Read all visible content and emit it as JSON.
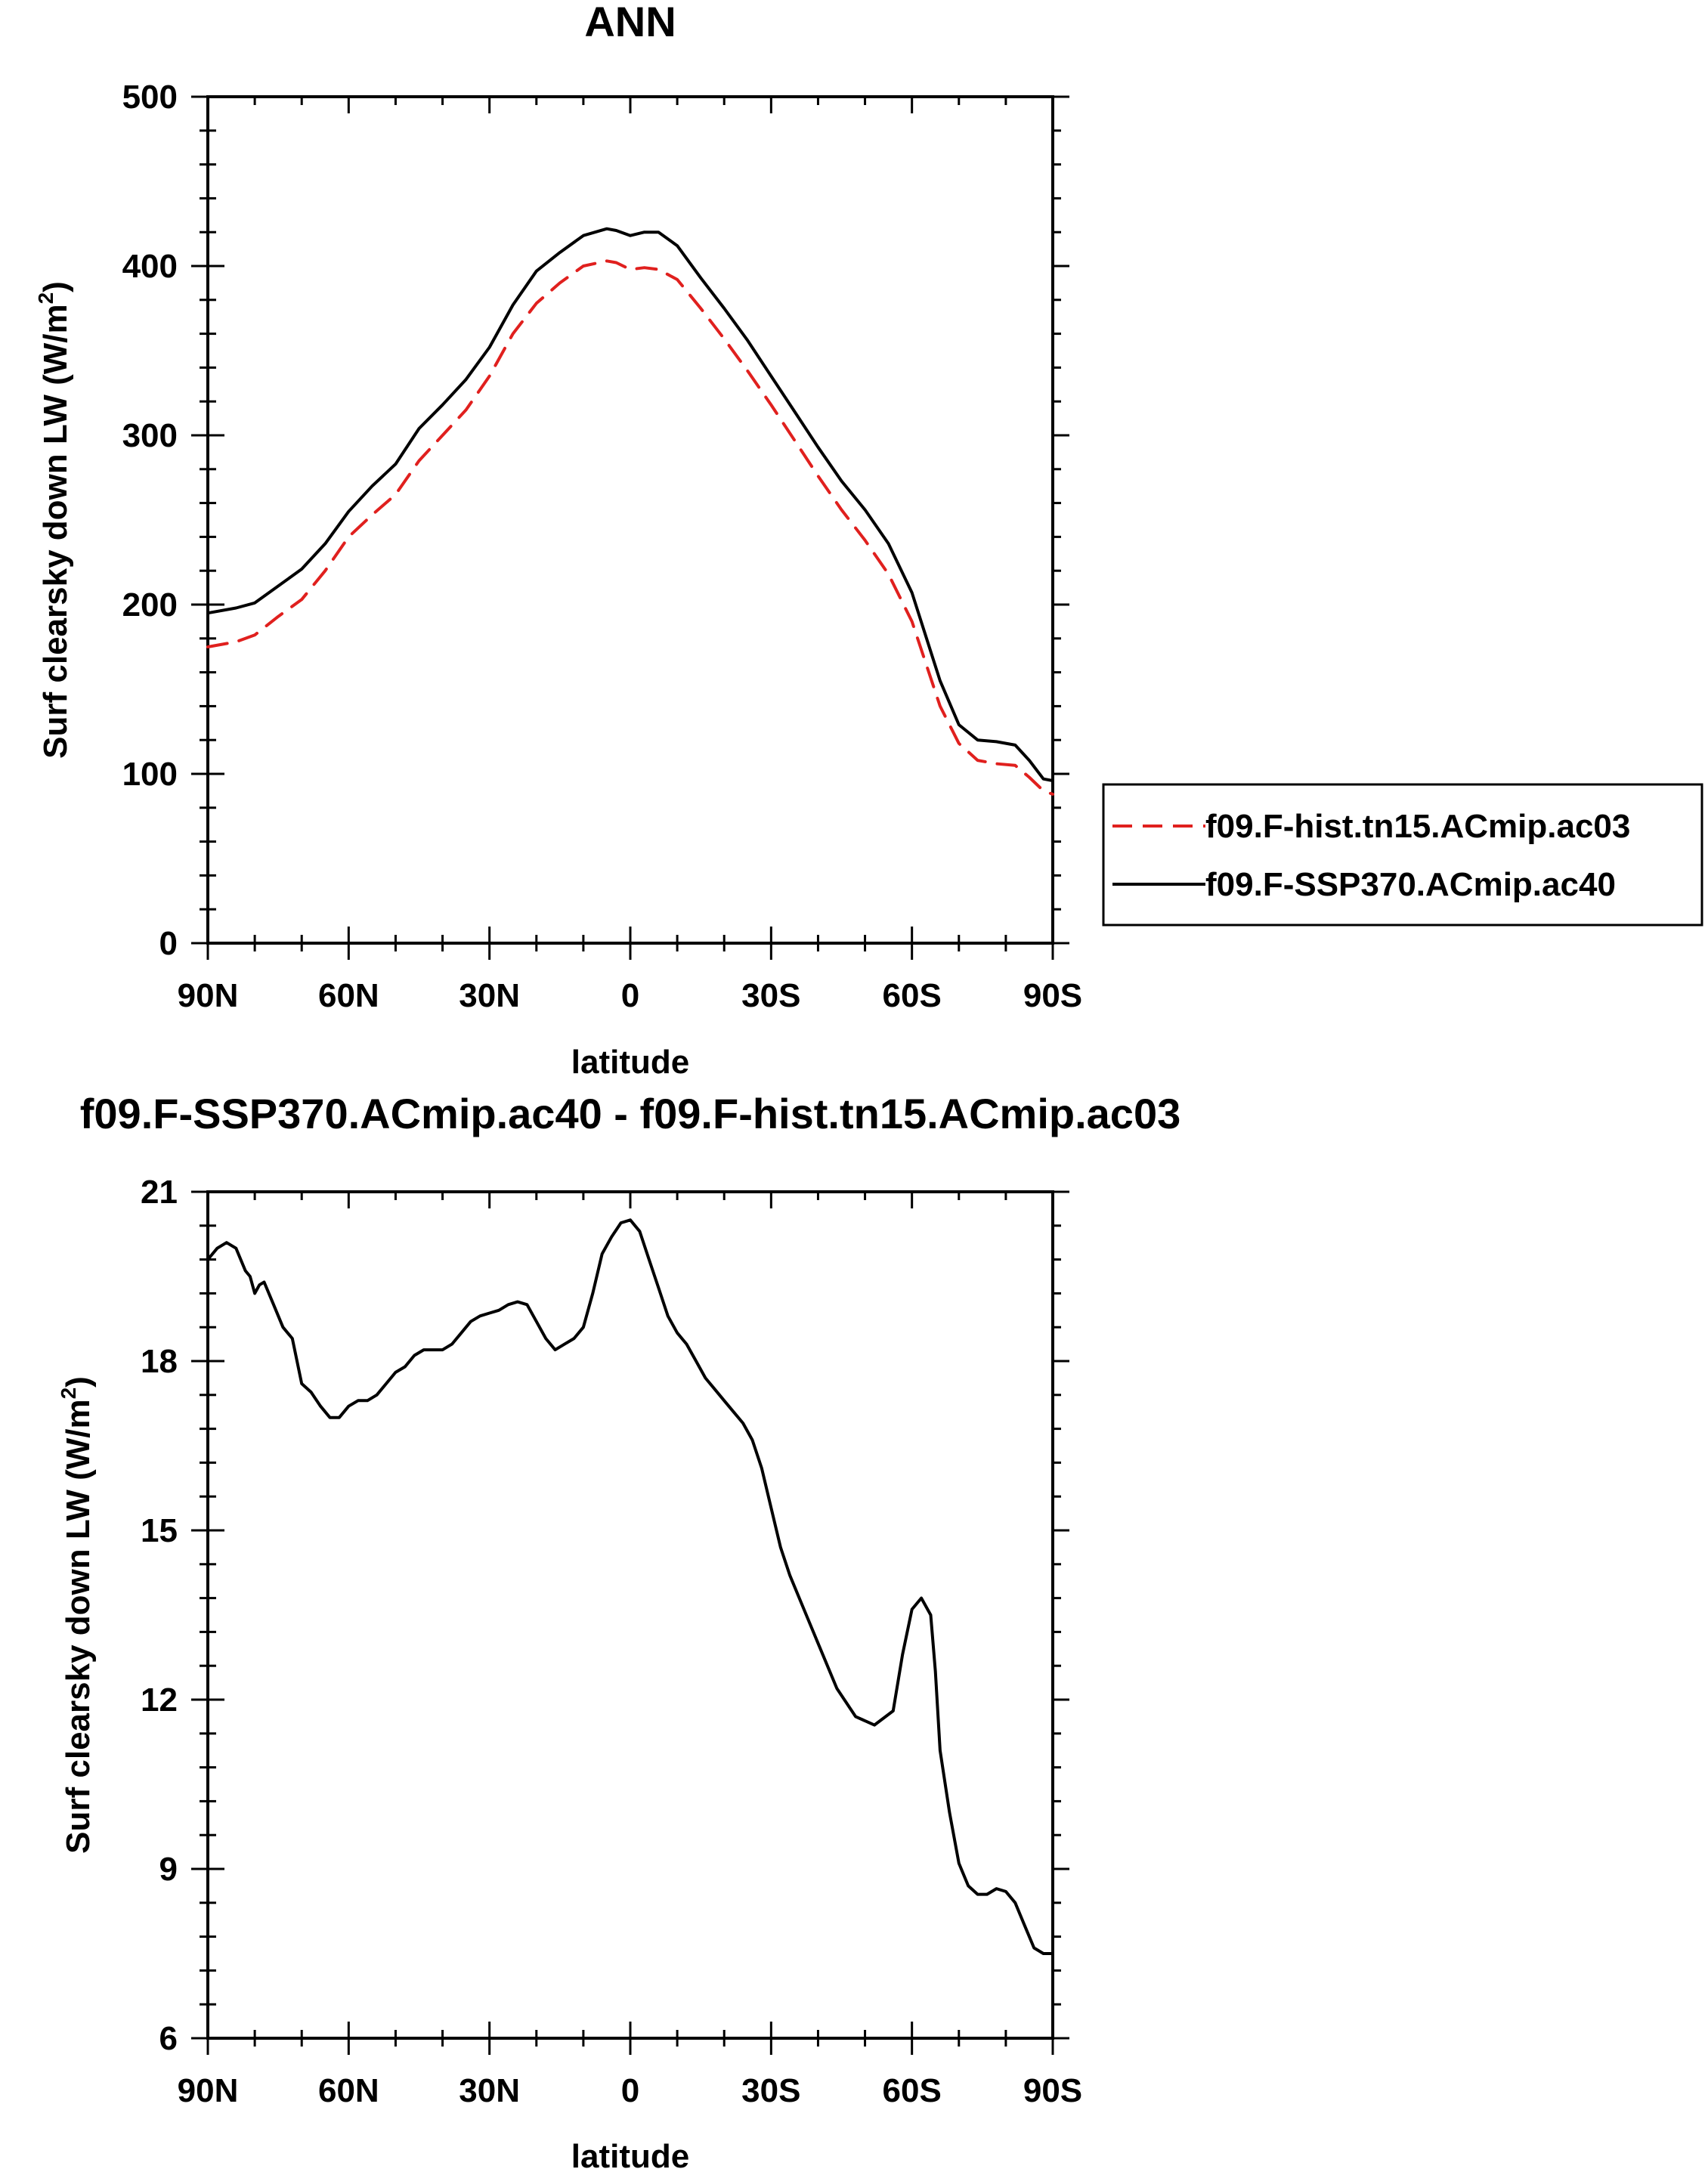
{
  "chart_data": [
    {
      "type": "line",
      "title": "ANN",
      "xlabel": "latitude",
      "ylabel": "Surf clearsky down LW (W/m",
      "ylabel_superscript": "2",
      "ylabel_suffix": ")",
      "xlim": [
        90,
        -90
      ],
      "ylim": [
        0,
        500
      ],
      "xticks": [
        {
          "value": 90,
          "label": "90N"
        },
        {
          "value": 60,
          "label": "60N"
        },
        {
          "value": 30,
          "label": "30N"
        },
        {
          "value": 0,
          "label": "0"
        },
        {
          "value": -30,
          "label": "30S"
        },
        {
          "value": -60,
          "label": "60S"
        },
        {
          "value": -90,
          "label": "90S"
        }
      ],
      "yticks": [
        {
          "value": 0,
          "label": "0"
        },
        {
          "value": 100,
          "label": "100"
        },
        {
          "value": 200,
          "label": "200"
        },
        {
          "value": 300,
          "label": "300"
        },
        {
          "value": 400,
          "label": "400"
        },
        {
          "value": 500,
          "label": "500"
        }
      ],
      "legend": "right",
      "series": [
        {
          "name": "f09.F-hist.tn15.ACmip.ac03",
          "color": "#e0201e",
          "style": "dashed",
          "x": [
            90,
            84,
            80,
            75,
            70,
            65,
            60,
            55,
            50,
            45,
            40,
            35,
            30,
            25,
            20,
            15,
            10,
            5,
            3,
            0,
            -3,
            -6,
            -10,
            -15,
            -20,
            -25,
            -30,
            -35,
            -40,
            -45,
            -50,
            -55,
            -60,
            -63,
            -66,
            -70,
            -74,
            -78,
            -82,
            -85,
            -88,
            -90
          ],
          "y": [
            175,
            178,
            182,
            193,
            203,
            220,
            240,
            253,
            265,
            285,
            300,
            315,
            335,
            360,
            378,
            390,
            400,
            403,
            402,
            398,
            399,
            398,
            392,
            375,
            357,
            338,
            318,
            297,
            276,
            256,
            238,
            218,
            190,
            165,
            140,
            118,
            108,
            106,
            105,
            98,
            90,
            88
          ]
        },
        {
          "name": "f09.F-SSP370.ACmip.ac40",
          "color": "#000000",
          "style": "solid",
          "x": [
            90,
            84,
            80,
            75,
            70,
            65,
            60,
            55,
            50,
            45,
            40,
            35,
            30,
            25,
            20,
            15,
            10,
            5,
            3,
            0,
            -3,
            -6,
            -10,
            -15,
            -20,
            -25,
            -30,
            -35,
            -40,
            -45,
            -50,
            -55,
            -60,
            -63,
            -66,
            -70,
            -74,
            -78,
            -82,
            -85,
            -88,
            -90
          ],
          "y": [
            195,
            198,
            201,
            211,
            221,
            236,
            255,
            270,
            283,
            304,
            318,
            333,
            352,
            377,
            397,
            408,
            418,
            422,
            421,
            418,
            420,
            420,
            412,
            393,
            375,
            356,
            335,
            314,
            293,
            273,
            256,
            236,
            207,
            181,
            155,
            129,
            120,
            119,
            117,
            108,
            97,
            96
          ]
        }
      ]
    },
    {
      "type": "line",
      "title": "f09.F-SSP370.ACmip.ac40 - f09.F-hist.tn15.ACmip.ac03",
      "xlabel": "latitude",
      "ylabel": "Surf clearsky down LW (W/m",
      "ylabel_superscript": "2",
      "ylabel_suffix": ")",
      "xlim": [
        90,
        -90
      ],
      "ylim": [
        6,
        21
      ],
      "xticks": [
        {
          "value": 90,
          "label": "90N"
        },
        {
          "value": 60,
          "label": "60N"
        },
        {
          "value": 30,
          "label": "30N"
        },
        {
          "value": 0,
          "label": "0"
        },
        {
          "value": -30,
          "label": "30S"
        },
        {
          "value": -60,
          "label": "60S"
        },
        {
          "value": -90,
          "label": "90S"
        }
      ],
      "yticks": [
        {
          "value": 6,
          "label": "6"
        },
        {
          "value": 9,
          "label": "9"
        },
        {
          "value": 12,
          "label": "12"
        },
        {
          "value": 15,
          "label": "15"
        },
        {
          "value": 18,
          "label": "18"
        },
        {
          "value": 21,
          "label": "21"
        }
      ],
      "series": [
        {
          "name": "f09.F-SSP370.ACmip.ac40 - f09.F-hist.tn15.ACmip.ac03",
          "color": "#000000",
          "style": "solid",
          "x": [
            90,
            88,
            86,
            84,
            82,
            81,
            80,
            79,
            78,
            76,
            74,
            73,
            72,
            70,
            68,
            66,
            64,
            62,
            60,
            58,
            56,
            54,
            52,
            50,
            48,
            46,
            44,
            42,
            40,
            38,
            36,
            34,
            32,
            30,
            28,
            26,
            24,
            22,
            20,
            18,
            16,
            14,
            12,
            10,
            8,
            6,
            4,
            2,
            0,
            -2,
            -4,
            -6,
            -8,
            -10,
            -12,
            -14,
            -16,
            -18,
            -20,
            -22,
            -24,
            -26,
            -28,
            -30,
            -32,
            -34,
            -36,
            -38,
            -40,
            -44,
            -48,
            -52,
            -56,
            -58,
            -60,
            -62,
            -64,
            -65,
            -66,
            -68,
            -70,
            -72,
            -74,
            -76,
            -78,
            -80,
            -82,
            -84,
            -86,
            -88,
            -90
          ],
          "y": [
            19.8,
            20.0,
            20.1,
            20.0,
            19.6,
            19.5,
            19.2,
            19.35,
            19.4,
            19.0,
            18.6,
            18.5,
            18.4,
            17.6,
            17.45,
            17.2,
            17.0,
            17.0,
            17.2,
            17.3,
            17.3,
            17.4,
            17.6,
            17.8,
            17.9,
            18.1,
            18.2,
            18.2,
            18.2,
            18.3,
            18.5,
            18.7,
            18.8,
            18.85,
            18.9,
            19.0,
            19.05,
            19.0,
            18.7,
            18.4,
            18.2,
            18.3,
            18.4,
            18.6,
            19.2,
            19.9,
            20.2,
            20.45,
            20.5,
            20.3,
            19.8,
            19.3,
            18.8,
            18.5,
            18.3,
            18.0,
            17.7,
            17.5,
            17.3,
            17.1,
            16.9,
            16.6,
            16.1,
            15.4,
            14.7,
            14.2,
            13.8,
            13.4,
            13.0,
            12.2,
            11.7,
            11.55,
            11.8,
            12.8,
            13.6,
            13.8,
            13.5,
            12.5,
            11.1,
            10.0,
            9.1,
            8.7,
            8.55,
            8.55,
            8.65,
            8.6,
            8.4,
            8.0,
            7.6,
            7.5,
            7.5
          ]
        }
      ]
    }
  ]
}
